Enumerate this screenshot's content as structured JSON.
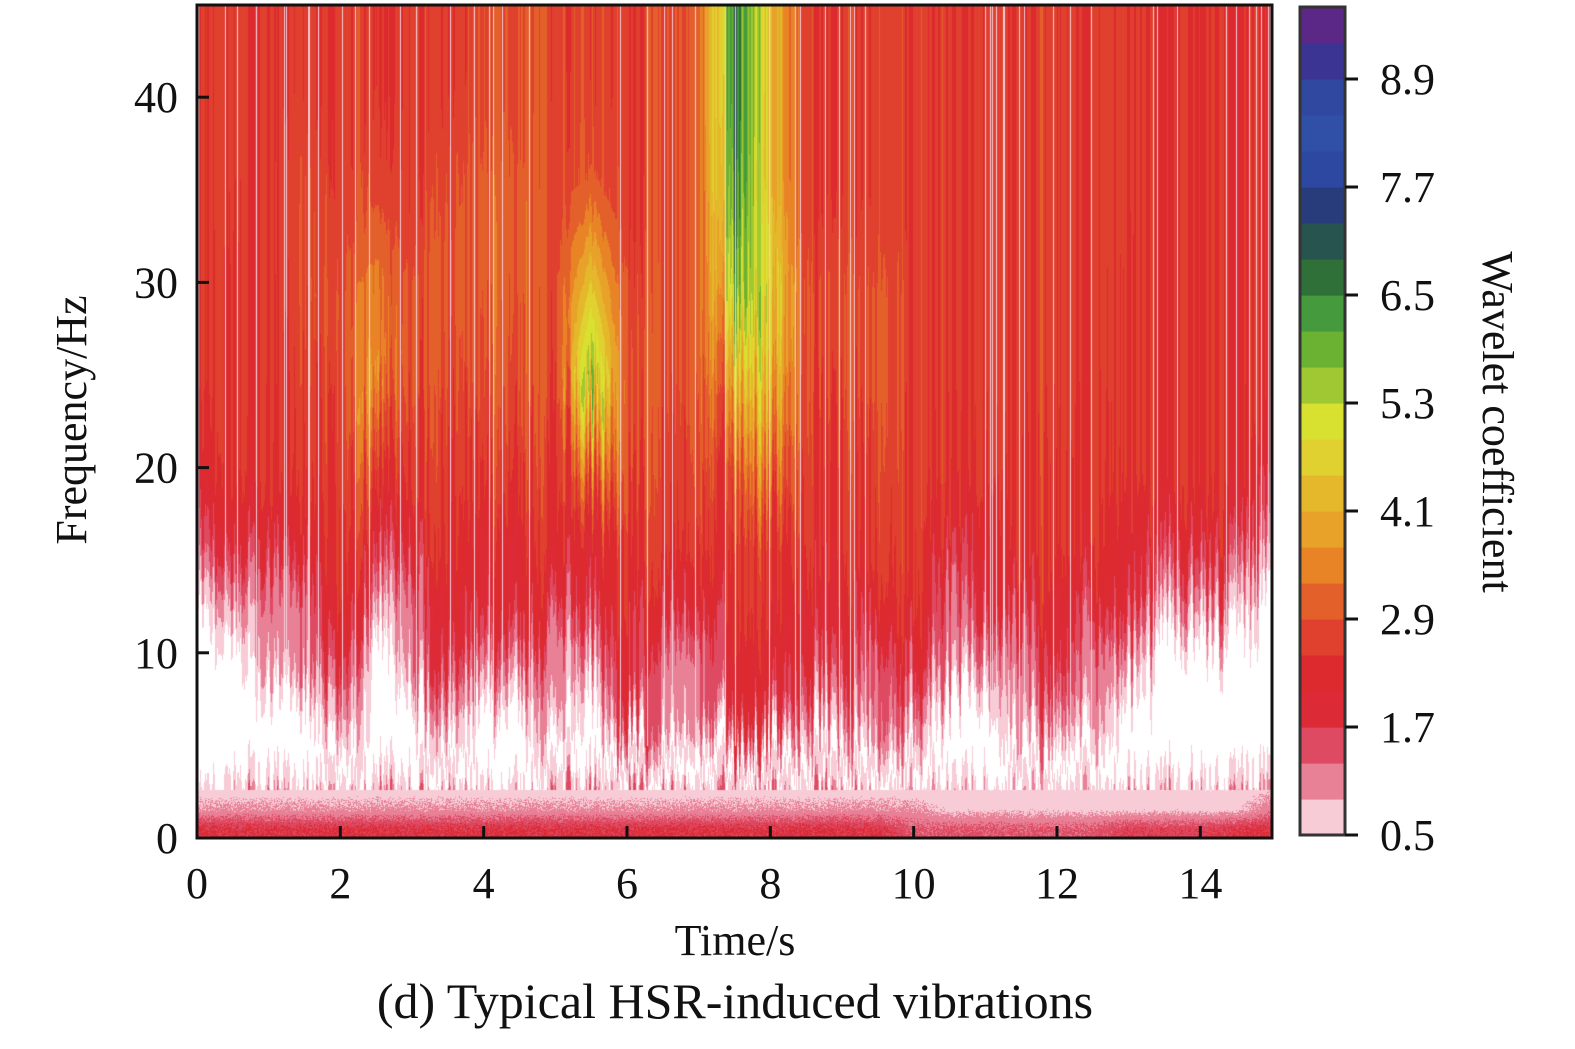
{
  "chart_data": {
    "type": "heatmap",
    "caption": "(d) Typical HSR-induced vibrations",
    "xlabel": "Time/s",
    "ylabel": "Frequency/Hz",
    "xlim": [
      0,
      15
    ],
    "ylim": [
      0,
      45
    ],
    "xticks": [
      "0",
      "2",
      "4",
      "6",
      "8",
      "10",
      "12",
      "14"
    ],
    "yticks": [
      "0",
      "10",
      "20",
      "30",
      "40"
    ],
    "grid": false,
    "colorbar": {
      "label": "Wavelet coefficient",
      "range": [
        0.5,
        9.7
      ],
      "ticks": [
        "0.5",
        "1.7",
        "2.9",
        "4.1",
        "5.3",
        "6.5",
        "7.7",
        "8.9"
      ],
      "colors_low_to_high": [
        "#f7ccd6",
        "#e88096",
        "#de4a62",
        "#dc2a36",
        "#dd2a2e",
        "#e0402e",
        "#e4602a",
        "#e88426",
        "#e8a22a",
        "#e4b82a",
        "#e0d030",
        "#d8e030",
        "#a0c832",
        "#6cb232",
        "#449a3c",
        "#2e7038",
        "#285450",
        "#283c7c",
        "#2c48a0",
        "#3050a8",
        "#3048a0",
        "#3c3492",
        "#5c2888"
      ],
      "below_range_color": "#ffffff"
    },
    "time_s": [
      0,
      0.5,
      1,
      1.5,
      2,
      2.5,
      3,
      3.5,
      4,
      4.5,
      5,
      5.5,
      6,
      6.5,
      7,
      7.5,
      8,
      8.5,
      9,
      9.5,
      10,
      10.5,
      11,
      11.5,
      12,
      12.5,
      13,
      13.5,
      14,
      14.5,
      15
    ],
    "frequency_hz": [
      0.5,
      1.5,
      4,
      7,
      10,
      13,
      16,
      20,
      25,
      30,
      35,
      40,
      44
    ],
    "values_by_time": [
      [
        1.8,
        1.0,
        0.3,
        0.3,
        0.3,
        0.3,
        1.2,
        2.0,
        2.5,
        2.5,
        2.5,
        2.5,
        2.5
      ],
      [
        1.8,
        1.0,
        0.3,
        0.3,
        0.3,
        1.2,
        2.0,
        2.5,
        2.5,
        2.5,
        2.6,
        2.6,
        2.6
      ],
      [
        1.8,
        1.0,
        0.3,
        0.3,
        1.2,
        1.2,
        2.0,
        2.5,
        2.6,
        2.6,
        2.6,
        2.6,
        2.6
      ],
      [
        1.8,
        1.0,
        0.3,
        0.3,
        1.2,
        1.2,
        2.0,
        2.5,
        2.6,
        2.8,
        2.8,
        2.6,
        2.6
      ],
      [
        1.8,
        1.0,
        0.3,
        1.2,
        2.0,
        2.5,
        2.5,
        2.6,
        2.8,
        2.8,
        2.6,
        2.6,
        2.6
      ],
      [
        1.8,
        1.0,
        0.3,
        0.3,
        0.3,
        1.2,
        2.0,
        2.8,
        3.8,
        3.5,
        2.8,
        2.6,
        2.6
      ],
      [
        1.8,
        1.0,
        0.3,
        0.3,
        1.2,
        1.2,
        2.0,
        2.5,
        2.8,
        2.8,
        2.6,
        2.6,
        2.6
      ],
      [
        1.8,
        1.0,
        0.3,
        1.2,
        2.0,
        2.0,
        2.5,
        2.6,
        2.8,
        3.0,
        2.8,
        2.6,
        2.6
      ],
      [
        1.8,
        1.0,
        0.3,
        0.3,
        1.2,
        2.0,
        2.0,
        2.5,
        2.8,
        3.0,
        3.0,
        2.8,
        2.8
      ],
      [
        1.8,
        1.0,
        0.3,
        0.3,
        1.2,
        2.0,
        2.0,
        2.5,
        2.8,
        3.0,
        3.0,
        2.8,
        2.8
      ],
      [
        1.8,
        1.0,
        0.3,
        1.2,
        1.2,
        2.0,
        2.5,
        2.6,
        2.8,
        2.8,
        2.8,
        2.8,
        2.8
      ],
      [
        1.8,
        1.0,
        0.3,
        0.3,
        1.2,
        2.0,
        2.0,
        3.5,
        6.0,
        4.5,
        3.0,
        2.8,
        2.8
      ],
      [
        1.8,
        1.0,
        0.3,
        2.0,
        2.0,
        2.5,
        2.5,
        3.0,
        3.0,
        2.8,
        2.6,
        2.6,
        2.6
      ],
      [
        1.8,
        1.0,
        0.3,
        1.2,
        1.2,
        2.0,
        2.5,
        2.6,
        2.8,
        2.8,
        2.8,
        2.8,
        2.8
      ],
      [
        1.8,
        1.0,
        0.3,
        1.2,
        1.2,
        2.0,
        2.5,
        2.8,
        3.0,
        3.0,
        3.0,
        3.0,
        3.0
      ],
      [
        1.8,
        1.0,
        0.3,
        2.0,
        2.0,
        2.5,
        2.5,
        2.8,
        4.0,
        5.5,
        6.2,
        6.5,
        6.5
      ],
      [
        1.8,
        1.0,
        0.3,
        2.0,
        2.0,
        2.5,
        2.5,
        3.5,
        4.5,
        5.0,
        4.5,
        4.5,
        4.5
      ],
      [
        1.8,
        1.0,
        0.3,
        1.2,
        2.0,
        2.0,
        2.5,
        2.5,
        2.8,
        2.8,
        2.6,
        2.6,
        2.6
      ],
      [
        1.8,
        1.0,
        0.3,
        1.2,
        2.0,
        2.0,
        2.5,
        2.5,
        2.8,
        2.8,
        2.6,
        2.6,
        2.6
      ],
      [
        1.8,
        1.0,
        0.3,
        1.2,
        1.2,
        2.0,
        2.5,
        2.6,
        2.8,
        2.8,
        2.6,
        2.6,
        2.6
      ],
      [
        1.4,
        1.0,
        0.3,
        1.2,
        2.0,
        2.5,
        2.5,
        2.6,
        2.6,
        2.6,
        2.6,
        2.6,
        2.6
      ],
      [
        1.4,
        0.8,
        0.3,
        0.3,
        1.2,
        1.2,
        2.0,
        2.5,
        2.6,
        2.6,
        2.6,
        2.6,
        2.6
      ],
      [
        1.4,
        0.8,
        0.3,
        0.3,
        1.2,
        2.0,
        2.0,
        2.5,
        2.6,
        2.6,
        2.6,
        2.6,
        2.6
      ],
      [
        1.4,
        0.8,
        0.3,
        1.2,
        1.2,
        2.0,
        2.5,
        2.5,
        2.6,
        2.6,
        2.6,
        2.6,
        2.6
      ],
      [
        1.4,
        0.8,
        0.3,
        1.2,
        2.0,
        2.0,
        2.5,
        2.5,
        2.6,
        2.6,
        2.6,
        2.6,
        2.6
      ],
      [
        1.4,
        0.8,
        0.3,
        1.2,
        1.2,
        2.0,
        2.5,
        2.5,
        2.6,
        2.6,
        2.6,
        2.6,
        2.6
      ],
      [
        1.6,
        0.8,
        0.3,
        0.3,
        1.2,
        2.0,
        2.0,
        2.5,
        2.5,
        2.5,
        2.6,
        2.6,
        2.6
      ],
      [
        1.6,
        0.8,
        0.3,
        0.3,
        0.3,
        1.2,
        2.0,
        2.5,
        2.5,
        2.5,
        2.5,
        2.5,
        2.5
      ],
      [
        1.6,
        0.8,
        0.3,
        0.3,
        0.3,
        1.2,
        2.0,
        2.5,
        2.5,
        2.5,
        2.5,
        2.5,
        2.5
      ],
      [
        1.8,
        0.8,
        0.3,
        0.3,
        0.3,
        1.2,
        2.0,
        2.5,
        2.5,
        2.5,
        2.5,
        2.5,
        2.5
      ],
      [
        1.8,
        1.2,
        0.4,
        0.3,
        0.3,
        0.3,
        1.2,
        2.0,
        2.5,
        2.5,
        2.5,
        2.5,
        2.5
      ]
    ]
  }
}
